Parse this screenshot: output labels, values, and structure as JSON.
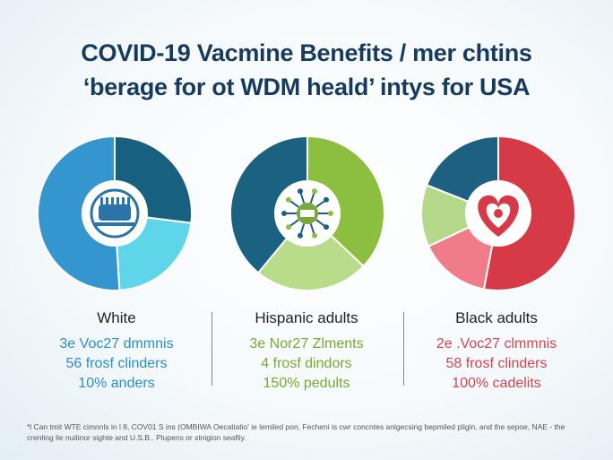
{
  "title_line1": "COVID-19 Vacmine Benefits / mer chtins",
  "title_line2": "‘berage for ot WDM heald’ intys for USA",
  "colors": {
    "title": "#173b5e",
    "white_group": [
      "#17607f",
      "#5fd5ea",
      "#3596cf"
    ],
    "hispanic_group": [
      "#8cbf3f",
      "#b8dc8a",
      "#1b6180"
    ],
    "black_group": [
      "#d63a47",
      "#ef7c88",
      "#b5d98a",
      "#1e6080"
    ]
  },
  "icons": [
    "vaccine-icon",
    "virus-icon",
    "heart-icon"
  ],
  "chart_data": [
    {
      "type": "pie",
      "group": "White",
      "slices": [
        {
          "value": 27,
          "color": "#17607f"
        },
        {
          "value": 22,
          "color": "#5fd5ea"
        },
        {
          "value": 51,
          "color": "#3596cf"
        }
      ],
      "lines": [
        "3e Voc27 dmmnis",
        "56 frosf clinders",
        "10% anders"
      ],
      "line_color": "#2a8ec7"
    },
    {
      "type": "pie",
      "group": "Hispanic adults",
      "slices": [
        {
          "value": 37,
          "color": "#8cbf3f"
        },
        {
          "value": 24,
          "color": "#b8dc8a"
        },
        {
          "value": 39,
          "color": "#1b6180"
        }
      ],
      "lines": [
        "3e Nor27 Zlments",
        "4 frosf dindors",
        "150% pedults"
      ],
      "line_color": "#78a830"
    },
    {
      "type": "pie",
      "group": "Black adults",
      "slices": [
        {
          "value": 53,
          "color": "#d63a47"
        },
        {
          "value": 15,
          "color": "#ef7c88"
        },
        {
          "value": 13,
          "color": "#b5d98a"
        },
        {
          "value": 19,
          "color": "#1e6080"
        }
      ],
      "lines": [
        "2e .Voc27 clmmnis",
        "58 frosf clinders",
        "100% cadelits"
      ],
      "line_color": "#d3434f"
    }
  ],
  "footnote": "*l Can tmit WTE  cimnnls in l 8, COV01 S ins  (OMBIWA Oecatiatio' ie lemiled pon,  Fecheni is cwr concntes  anlgecsing bepmiled pligin, and the sepoe, NAE - the crenling lie nuitinor sighte and U.S.B..  Plupens or stnigion seafliy."
}
